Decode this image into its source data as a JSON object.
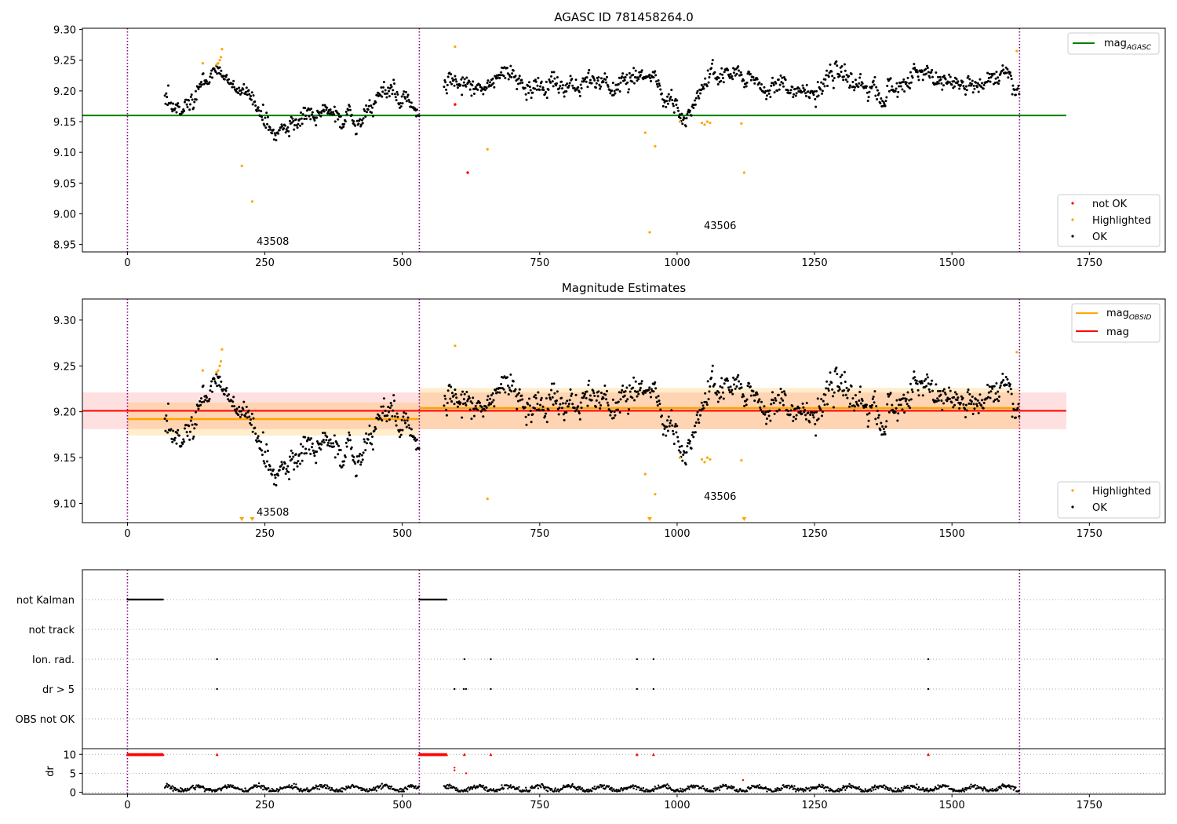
{
  "figure": {
    "background": "#ffffff"
  },
  "chart_data": [
    {
      "type": "scatter",
      "title": "AGASC ID 781458264.0",
      "xlim": [
        -82,
        1888
      ],
      "ylim": [
        8.938,
        9.302
      ],
      "xticks": [
        0,
        250,
        500,
        750,
        1000,
        1250,
        1500,
        1750
      ],
      "yticks": [
        8.95,
        9.0,
        9.05,
        9.1,
        9.15,
        9.2,
        9.25,
        9.3
      ],
      "ytick_labels": [
        "8.95",
        "9.00",
        "9.05",
        "9.10",
        "9.15",
        "9.20",
        "9.25",
        "9.30"
      ],
      "obsid_boundaries": [
        0,
        531,
        1623
      ],
      "obsid_labels": [
        {
          "text": "43508",
          "x": 232,
          "y": 8.957
        },
        {
          "text": "43506",
          "x": 1042,
          "y": 8.98
        }
      ],
      "reference_line": {
        "name": "mag",
        "subscript": "AGASC",
        "y": 9.16,
        "x": [
          -82,
          1708
        ],
        "color": "#008000"
      },
      "segments": [
        {
          "x0": 68,
          "x1": 531,
          "base": 9.188
        },
        {
          "x0": 576,
          "x1": 1623,
          "base": 9.205
        }
      ],
      "features": [
        {
          "x0": 120,
          "x1": 175,
          "delta": 0.035
        },
        {
          "x0": 220,
          "x1": 360,
          "delta": -0.015
        },
        {
          "x0": 960,
          "x1": 1065,
          "delta": -0.04
        },
        {
          "x0": 1360,
          "x1": 1385,
          "delta": -0.02
        },
        {
          "x0": 1580,
          "x1": 1623,
          "delta": 0.03
        }
      ],
      "highlighted": [
        {
          "x": 137,
          "y": 9.245
        },
        {
          "x": 162,
          "y": 9.243
        },
        {
          "x": 165,
          "y": 9.245
        },
        {
          "x": 168,
          "y": 9.25
        },
        {
          "x": 170,
          "y": 9.255
        },
        {
          "x": 172,
          "y": 9.268
        },
        {
          "x": 208,
          "y": 9.078
        },
        {
          "x": 227,
          "y": 9.02
        },
        {
          "x": 596,
          "y": 9.272
        },
        {
          "x": 655,
          "y": 9.105
        },
        {
          "x": 942,
          "y": 9.132
        },
        {
          "x": 950,
          "y": 8.97
        },
        {
          "x": 960,
          "y": 9.11
        },
        {
          "x": 1005,
          "y": 9.15
        },
        {
          "x": 1045,
          "y": 9.148
        },
        {
          "x": 1050,
          "y": 9.145
        },
        {
          "x": 1055,
          "y": 9.15
        },
        {
          "x": 1060,
          "y": 9.148
        },
        {
          "x": 1117,
          "y": 9.147
        },
        {
          "x": 1122,
          "y": 9.067
        },
        {
          "x": 1618,
          "y": 9.265
        }
      ],
      "not_ok": [
        {
          "x": 596,
          "y": 9.178
        },
        {
          "x": 619,
          "y": 9.067
        }
      ],
      "legend_series": [
        {
          "name": "not OK",
          "color": "#ff0000"
        },
        {
          "name": "Highlighted",
          "color": "#ffa500"
        },
        {
          "name": "OK",
          "color": "#000000"
        }
      ],
      "legend_placement": "lower-right"
    },
    {
      "type": "scatter",
      "title": "Magnitude Estimates",
      "xlim": [
        -82,
        1888
      ],
      "ylim": [
        9.079,
        9.323
      ],
      "xticks": [
        0,
        250,
        500,
        750,
        1000,
        1250,
        1500,
        1750
      ],
      "yticks": [
        9.1,
        9.15,
        9.2,
        9.25,
        9.3
      ],
      "ytick_labels": [
        "9.10",
        "9.15",
        "9.20",
        "9.25",
        "9.30"
      ],
      "obsid_boundaries": [
        0,
        531,
        1623
      ],
      "obsid_labels": [
        {
          "text": "43508",
          "x": 232,
          "y": 9.087
        },
        {
          "text": "43506",
          "x": 1042,
          "y": 9.105
        }
      ],
      "mag_line": {
        "name": "mag",
        "y": 9.201,
        "band": [
          9.181,
          9.221
        ],
        "x": [
          -82,
          1708
        ],
        "color": "#ff0000"
      },
      "obsid_mag": {
        "name": "mag",
        "subscript": "OBSID",
        "color": "#ffa500",
        "segments": [
          {
            "x0": 0,
            "x1": 531,
            "y": 9.192,
            "band": [
              9.174,
              9.21
            ]
          },
          {
            "x0": 531,
            "x1": 1623,
            "y": 9.204,
            "band": [
              9.181,
              9.226
            ]
          }
        ]
      },
      "offscale_markers": [
        {
          "x": 208
        },
        {
          "x": 227
        },
        {
          "x": 950
        },
        {
          "x": 1122
        }
      ],
      "legend_series": [
        {
          "name": "Highlighted",
          "color": "#ffa500"
        },
        {
          "name": "OK",
          "color": "#000000"
        }
      ],
      "legend_placement": "lower-right"
    },
    {
      "type": "scatter",
      "title": "",
      "xlim": [
        -82,
        1888
      ],
      "categories": [
        "not Kalman",
        "not track",
        "Ion. rad.",
        "dr > 5",
        "OBS not OK"
      ],
      "flags": {
        "not Kalman": {
          "ranges": [
            [
              0,
              65
            ],
            [
              531,
              581
            ]
          ],
          "points": []
        },
        "not track": {
          "ranges": [],
          "points": []
        },
        "Ion. rad.": {
          "ranges": [],
          "points": [
            163,
            613,
            661,
            927,
            957,
            1457
          ]
        },
        "dr > 5": {
          "ranges": [],
          "points": [
            163,
            595,
            612,
            616,
            661,
            927,
            957,
            1457
          ]
        },
        "OBS not OK": {
          "ranges": [],
          "points": []
        }
      }
    },
    {
      "type": "scatter",
      "ylabel": "dr",
      "xlim": [
        -82,
        1888
      ],
      "ylim": [
        -0.5,
        11.5
      ],
      "xticks": [
        0,
        250,
        500,
        750,
        1000,
        1250,
        1500,
        1750
      ],
      "yticks": [
        0,
        5,
        10
      ],
      "dr_clip_ranges": [
        [
          0,
          65
        ],
        [
          531,
          581
        ]
      ],
      "dr_clip_points": [
        163,
        613,
        661,
        927,
        957,
        1457
      ],
      "dr_extra_points": [
        {
          "x": 595,
          "y": 6.5
        },
        {
          "x": 595,
          "y": 5.8
        },
        {
          "x": 616,
          "y": 5.0
        },
        {
          "x": 1120,
          "y": 3.2
        }
      ],
      "dr_segments": [
        [
          68,
          531
        ],
        [
          576,
          1623
        ]
      ]
    }
  ]
}
